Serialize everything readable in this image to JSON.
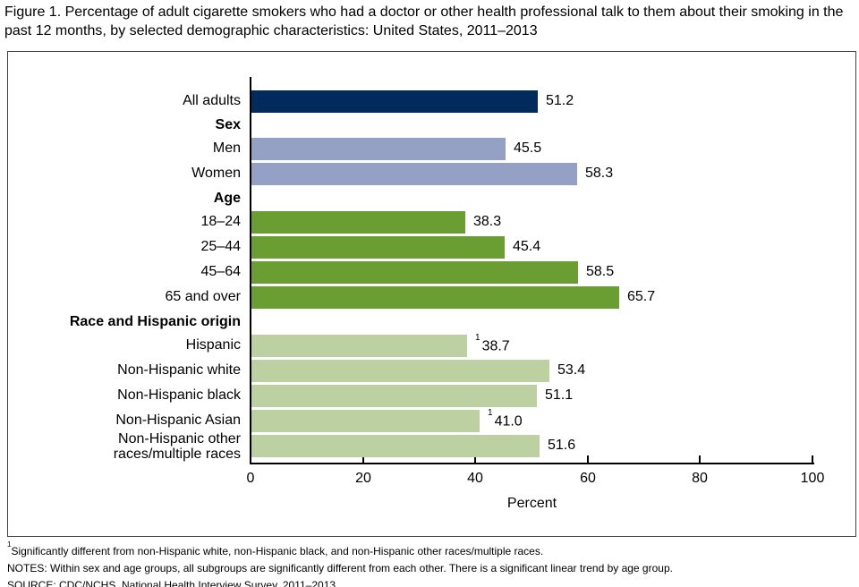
{
  "chart_data": {
    "type": "bar",
    "orientation": "horizontal",
    "title": "Figure 1. Percentage of adult cigarette smokers who had a doctor or other health professional talk to them about their smoking in the past 12 months, by selected demographic characteristics: United States, 2011–2013",
    "xlabel": "Percent",
    "xlim": [
      0,
      100
    ],
    "xticks": [
      0,
      20,
      40,
      60,
      80,
      100
    ],
    "grid": false,
    "value_labels_shown": true,
    "groups": [
      {
        "header": "",
        "bars": [
          {
            "label": "All adults",
            "value": 51.2,
            "display": "51.2",
            "color": "#002b5c"
          }
        ]
      },
      {
        "header": "Sex",
        "bars": [
          {
            "label": "Men",
            "value": 45.5,
            "display": "45.5",
            "color": "#94a1c4"
          },
          {
            "label": "Women",
            "value": 58.3,
            "display": "58.3",
            "color": "#94a1c4"
          }
        ]
      },
      {
        "header": "Age",
        "bars": [
          {
            "label": "18–24",
            "value": 38.3,
            "display": "38.3",
            "color": "#6b9e32"
          },
          {
            "label": "25–44",
            "value": 45.4,
            "display": "45.4",
            "color": "#6b9e32"
          },
          {
            "label": "45–64",
            "value": 58.5,
            "display": "58.5",
            "color": "#6b9e32"
          },
          {
            "label": "65 and over",
            "value": 65.7,
            "display": "65.7",
            "color": "#6b9e32"
          }
        ]
      },
      {
        "header": "Race and Hispanic origin",
        "bars": [
          {
            "label": "Hispanic",
            "value": 38.7,
            "display": "38.7",
            "footnote_marker": "1",
            "color": "#bdd0a2"
          },
          {
            "label": "Non-Hispanic white",
            "value": 53.4,
            "display": "53.4",
            "color": "#bdd0a2"
          },
          {
            "label": "Non-Hispanic black",
            "value": 51.1,
            "display": "51.1",
            "color": "#bdd0a2"
          },
          {
            "label": "Non-Hispanic Asian",
            "value": 41.0,
            "display": "41.0",
            "footnote_marker": "1",
            "color": "#bdd0a2"
          },
          {
            "label": "Non-Hispanic other races/multiple races",
            "label_lines": [
              "Non-Hispanic other",
              "races/multiple races"
            ],
            "value": 51.6,
            "display": "51.6",
            "color": "#bdd0a2"
          }
        ]
      }
    ]
  },
  "footnotes": [
    {
      "marker": "1",
      "text": "Significantly different from non-Hispanic white, non-Hispanic black, and non-Hispanic other races/multiple races."
    },
    {
      "marker": "",
      "text": "NOTES: Within sex and age groups, all subgroups are significantly different from each other. There is a significant linear trend by age group."
    },
    {
      "marker": "",
      "text": "SOURCE: CDC/NCHS, National Health Interview Survey, 2011–2013."
    }
  ]
}
